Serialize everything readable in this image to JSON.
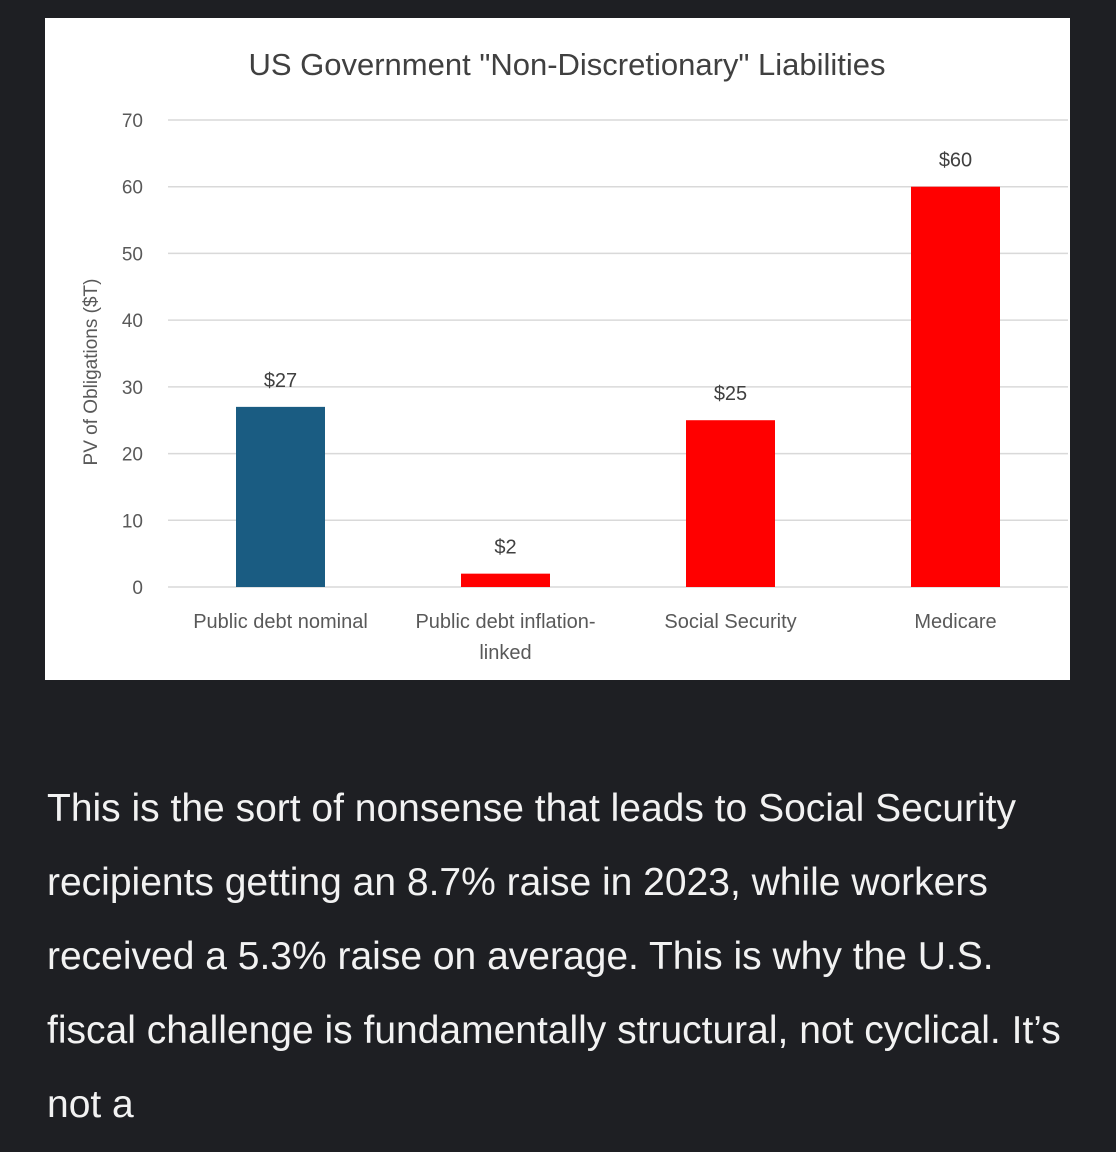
{
  "chart_data": {
    "type": "bar",
    "title": "US Government \"Non-Discretionary\" Liabilities",
    "xlabel": "",
    "ylabel": "PV of Obligations ($T)",
    "ylim": [
      0,
      70
    ],
    "yticks": [
      0,
      10,
      20,
      30,
      40,
      50,
      60,
      70
    ],
    "grid": true,
    "categories": [
      "Public debt nominal",
      "Public debt inflation-linked",
      "Social Security",
      "Medicare"
    ],
    "category_lines": [
      [
        "Public debt nominal"
      ],
      [
        "Public debt inflation-",
        "linked"
      ],
      [
        "Social Security"
      ],
      [
        "Medicare"
      ]
    ],
    "values": [
      27,
      2,
      25,
      60
    ],
    "data_labels": [
      "$27",
      "$2",
      "$25",
      "$60"
    ],
    "colors": [
      "#1a5c82",
      "#ff0000",
      "#ff0000",
      "#ff0000"
    ]
  },
  "body_text": "This is the sort of nonsense that leads to Social Security recipients getting an 8.7% raise in 2023, while workers received a 5.3% raise on average. This is why the U.S. fiscal challenge is fundamentally structural, not cyclical. It’s not a"
}
